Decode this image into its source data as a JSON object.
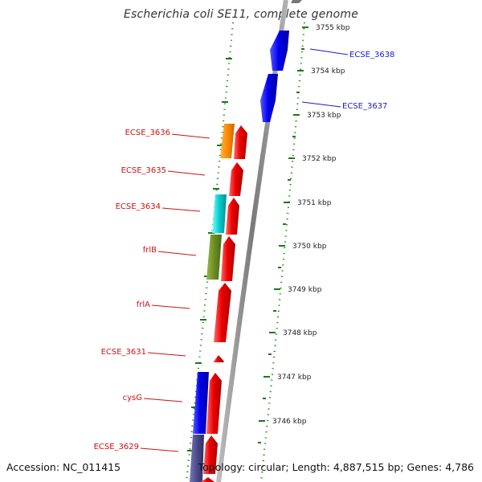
{
  "title": "Escherichia coli SE11, complete genome",
  "accession": "Accession: NC_011415",
  "summary": "Topology: circular; Length: 4,887,515 bp; Genes: 4,786",
  "colors": {
    "forward": "#0000ee",
    "reverse": "#ee0000",
    "forward_label": "#1a1acc",
    "reverse_label": "#cc1111",
    "tick": "#1a7a1a",
    "backbone": "#888888"
  },
  "ticks": [
    {
      "label": "3755 kbp",
      "kbp": 3755
    },
    {
      "label": "3754 kbp",
      "kbp": 3754
    },
    {
      "label": "3753 kbp",
      "kbp": 3753
    },
    {
      "label": "3752 kbp",
      "kbp": 3752
    },
    {
      "label": "3751 kbp",
      "kbp": 3751
    },
    {
      "label": "3750 kbp",
      "kbp": 3750
    },
    {
      "label": "3749 kbp",
      "kbp": 3749
    },
    {
      "label": "3748 kbp",
      "kbp": 3748
    },
    {
      "label": "3747 kbp",
      "kbp": 3747
    },
    {
      "label": "3746 kbp",
      "kbp": 3746
    }
  ],
  "forward_labels": [
    {
      "text": "ECSE_3638"
    },
    {
      "text": "ECSE_3637"
    }
  ],
  "reverse_labels": [
    {
      "text": "ECSE_3636"
    },
    {
      "text": "ECSE_3635"
    },
    {
      "text": "ECSE_3634"
    },
    {
      "text": "frlB"
    },
    {
      "text": "frlA"
    },
    {
      "text": "ECSE_3631"
    },
    {
      "text": "cysG"
    },
    {
      "text": "ECSE_3629"
    }
  ]
}
